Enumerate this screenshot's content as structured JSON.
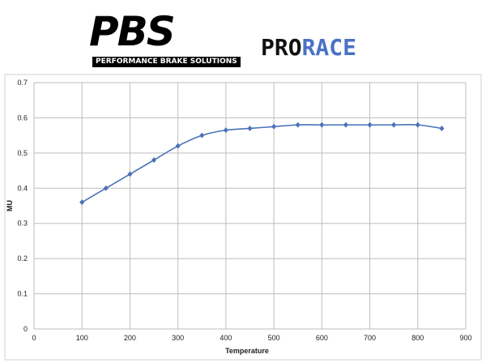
{
  "header": {
    "logo_text": "PBS",
    "logo_tagline": "PERFORMANCE BRAKE SOLUTIONS",
    "product_prefix": "PRO",
    "product_suffix": "RACE",
    "accent_color": "#4a72c4"
  },
  "chart_data": {
    "type": "line",
    "title": "",
    "xlabel": "Temperature",
    "ylabel": "MU",
    "xlim": [
      0,
      900
    ],
    "ylim": [
      0,
      0.7
    ],
    "xticks": [
      0,
      100,
      200,
      300,
      400,
      500,
      600,
      700,
      800,
      900
    ],
    "yticks": [
      0,
      0.1,
      0.2,
      0.3,
      0.4,
      0.5,
      0.6,
      0.7
    ],
    "grid": true,
    "series": [
      {
        "color": "#4a72b8",
        "marker": "diamond",
        "smooth": true,
        "x": [
          100,
          150,
          200,
          250,
          300,
          350,
          400,
          450,
          500,
          550,
          600,
          650,
          700,
          750,
          800,
          850
        ],
        "y": [
          0.36,
          0.4,
          0.44,
          0.48,
          0.52,
          0.55,
          0.565,
          0.57,
          0.575,
          0.58,
          0.58,
          0.58,
          0.58,
          0.58,
          0.58,
          0.57
        ]
      }
    ]
  }
}
